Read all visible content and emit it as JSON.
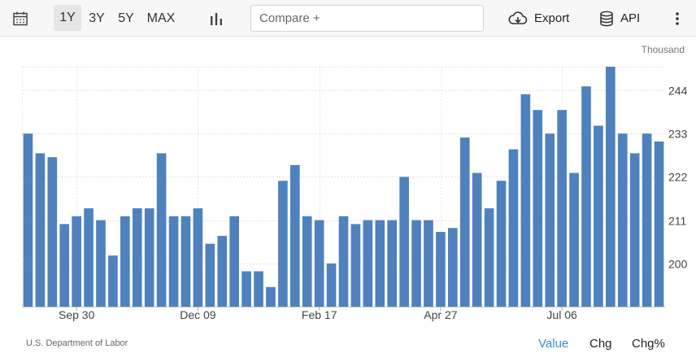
{
  "toolbar": {
    "calendar_icon": "calendar-icon",
    "ranges": [
      "1Y",
      "3Y",
      "5Y",
      "MAX"
    ],
    "active_range": "1Y",
    "chart_type_icon": "bar-chart-icon",
    "compare_placeholder": "Compare +",
    "export_label": "Export",
    "export_icon": "cloud-download-icon",
    "api_label": "API",
    "api_icon": "database-icon",
    "more_icon": "vertical-dots-icon"
  },
  "footer": {
    "source": "U.S. Department of Labor",
    "modes": [
      "Value",
      "Chg",
      "Chg%"
    ],
    "active_mode": "Value"
  },
  "colors": {
    "bar": "#4f81bd",
    "accent": "#3a8fd6"
  },
  "chart_data": {
    "type": "bar",
    "unit_label": "Thousand",
    "x_tick_labels": [
      "Sep 30",
      "Dec 09",
      "Feb 17",
      "Apr 27",
      "Jul 06"
    ],
    "x_tick_bar_index": [
      4,
      14,
      24,
      34,
      44
    ],
    "yticks": [
      200,
      211,
      222,
      233,
      244
    ],
    "ylim": [
      189,
      250
    ],
    "grid": true,
    "y_axis_position": "right",
    "values": [
      233,
      228,
      227,
      210,
      212,
      214,
      211,
      202,
      212,
      214,
      214,
      228,
      212,
      212,
      214,
      205,
      207,
      212,
      198,
      198,
      194,
      221,
      225,
      212,
      211,
      200,
      212,
      210,
      211,
      211,
      211,
      222,
      211,
      211,
      208,
      209,
      232,
      223,
      214,
      221,
      229,
      243,
      239,
      233,
      239,
      223,
      245,
      235,
      250,
      233,
      228,
      233,
      231
    ]
  }
}
